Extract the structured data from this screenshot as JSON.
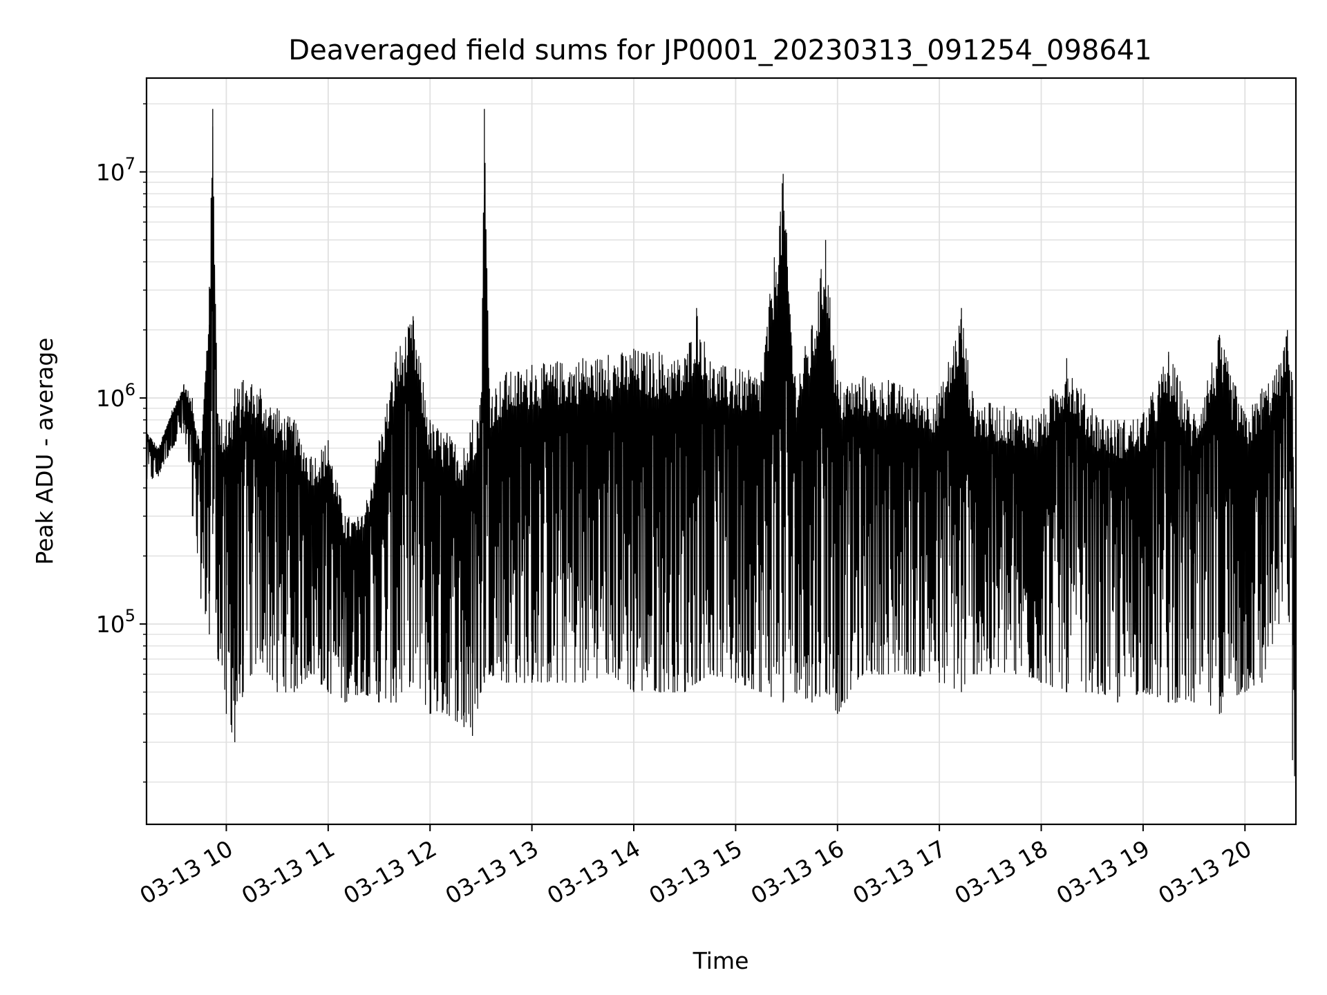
{
  "chart_data": {
    "type": "line",
    "title": "Deaveraged field sums for JP0001_20230313_091254_098641",
    "xlabel": "Time",
    "ylabel": "Peak ADU - average",
    "yscale": "log",
    "ylim": [
      13000,
      26000000
    ],
    "xlim": [
      "2023-03-13 09:13",
      "2023-03-13 20:30"
    ],
    "grid": true,
    "line_color": "#000000",
    "grid_color": "#e0e0e0",
    "x_ticks": [
      {
        "label": "03-13 10",
        "value": "2023-03-13 10:00"
      },
      {
        "label": "03-13 11",
        "value": "2023-03-13 11:00"
      },
      {
        "label": "03-13 12",
        "value": "2023-03-13 12:00"
      },
      {
        "label": "03-13 13",
        "value": "2023-03-13 13:00"
      },
      {
        "label": "03-13 14",
        "value": "2023-03-13 14:00"
      },
      {
        "label": "03-13 15",
        "value": "2023-03-13 15:00"
      },
      {
        "label": "03-13 16",
        "value": "2023-03-13 16:00"
      },
      {
        "label": "03-13 17",
        "value": "2023-03-13 17:00"
      },
      {
        "label": "03-13 18",
        "value": "2023-03-13 18:00"
      },
      {
        "label": "03-13 19",
        "value": "2023-03-13 19:00"
      },
      {
        "label": "03-13 20",
        "value": "2023-03-13 20:00"
      }
    ],
    "y_ticks": [
      {
        "base": "10",
        "exp": "5",
        "value": 100000
      },
      {
        "base": "10",
        "exp": "6",
        "value": 1000000
      },
      {
        "base": "10",
        "exp": "7",
        "value": 10000000
      }
    ],
    "series": [
      {
        "x": [
          "2023-03-13 09:13",
          "2023-03-13 09:20",
          "2023-03-13 09:28",
          "2023-03-13 09:35",
          "2023-03-13 09:40",
          "2023-03-13 09:45",
          "2023-03-13 09:50",
          "2023-03-13 09:52",
          "2023-03-13 09:55",
          "2023-03-13 10:00",
          "2023-03-13 10:05",
          "2023-03-13 10:10",
          "2023-03-13 10:15",
          "2023-03-13 10:20",
          "2023-03-13 10:30",
          "2023-03-13 10:40",
          "2023-03-13 10:50",
          "2023-03-13 11:00",
          "2023-03-13 11:10",
          "2023-03-13 11:20",
          "2023-03-13 11:30",
          "2023-03-13 11:40",
          "2023-03-13 11:50",
          "2023-03-13 12:00",
          "2023-03-13 12:10",
          "2023-03-13 12:20",
          "2023-03-13 12:25",
          "2023-03-13 12:30",
          "2023-03-13 12:32",
          "2023-03-13 12:35",
          "2023-03-13 12:45",
          "2023-03-13 13:00",
          "2023-03-13 13:15",
          "2023-03-13 13:30",
          "2023-03-13 13:45",
          "2023-03-13 14:00",
          "2023-03-13 14:15",
          "2023-03-13 14:30",
          "2023-03-13 14:37",
          "2023-03-13 14:45",
          "2023-03-13 15:00",
          "2023-03-13 15:15",
          "2023-03-13 15:28",
          "2023-03-13 15:35",
          "2023-03-13 15:45",
          "2023-03-13 15:53",
          "2023-03-13 16:00",
          "2023-03-13 16:15",
          "2023-03-13 16:30",
          "2023-03-13 16:45",
          "2023-03-13 17:00",
          "2023-03-13 17:13",
          "2023-03-13 17:20",
          "2023-03-13 17:30",
          "2023-03-13 17:45",
          "2023-03-13 18:00",
          "2023-03-13 18:15",
          "2023-03-13 18:30",
          "2023-03-13 18:45",
          "2023-03-13 19:00",
          "2023-03-13 19:15",
          "2023-03-13 19:30",
          "2023-03-13 19:45",
          "2023-03-13 20:00",
          "2023-03-13 20:10",
          "2023-03-13 20:20",
          "2023-03-13 20:25",
          "2023-03-13 20:28",
          "2023-03-13 20:30"
        ],
        "y_upper": [
          720000,
          600000,
          880000,
          1150000,
          1000000,
          600000,
          3100000,
          19000000,
          850000,
          800000,
          1100000,
          1200000,
          1150000,
          1100000,
          900000,
          800000,
          550000,
          650000,
          300000,
          300000,
          650000,
          1600000,
          2300000,
          800000,
          700000,
          600000,
          800000,
          1000000,
          19000000,
          1100000,
          1300000,
          1400000,
          1450000,
          1500000,
          1550000,
          1650000,
          1600000,
          1500000,
          2500000,
          1450000,
          1350000,
          1300000,
          9800000,
          1250000,
          2100000,
          5000000,
          1200000,
          1250000,
          1200000,
          1100000,
          1050000,
          2500000,
          1000000,
          950000,
          900000,
          850000,
          1500000,
          900000,
          800000,
          850000,
          1600000,
          850000,
          1900000,
          850000,
          1100000,
          1400000,
          2000000,
          1200000,
          190000
        ],
        "y_lower": [
          420000,
          450000,
          600000,
          700000,
          300000,
          130000,
          90000,
          250000,
          70000,
          40000,
          30000,
          50000,
          60000,
          70000,
          50000,
          50000,
          60000,
          50000,
          45000,
          50000,
          45000,
          45000,
          55000,
          40000,
          40000,
          35000,
          32000,
          50000,
          55000,
          60000,
          55000,
          55000,
          55000,
          55000,
          60000,
          50000,
          50000,
          50000,
          55000,
          60000,
          55000,
          50000,
          45000,
          50000,
          45000,
          50000,
          40000,
          60000,
          60000,
          60000,
          55000,
          50000,
          60000,
          60000,
          60000,
          55000,
          50000,
          50000,
          45000,
          50000,
          45000,
          45000,
          40000,
          50000,
          55000,
          100000,
          150000,
          25000,
          18000
        ]
      }
    ]
  }
}
